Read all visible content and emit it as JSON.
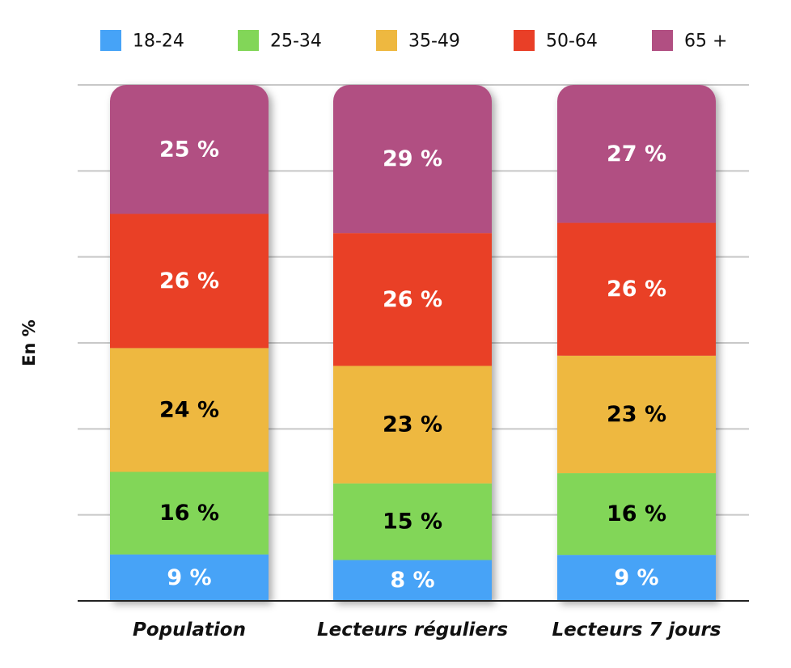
{
  "chart_data": {
    "type": "bar",
    "stacked": true,
    "normalized_percent": true,
    "ylabel": "En %",
    "ylim": [
      0,
      100
    ],
    "grid": true,
    "legend_position": "top",
    "categories": [
      "Population",
      "Lecteurs réguliers",
      "Lecteurs 7 jours"
    ],
    "series": [
      {
        "name": "18-24",
        "color": "#46a3f7",
        "label_color": "#ffffff",
        "values": [
          9,
          8,
          9
        ],
        "labels": [
          "9 %",
          "8 %",
          "9 %"
        ]
      },
      {
        "name": "25-34",
        "color": "#82d658",
        "label_color": "#000000",
        "values": [
          16,
          15,
          16
        ],
        "labels": [
          "16 %",
          "15 %",
          "16 %"
        ]
      },
      {
        "name": "35-49",
        "color": "#eeb840",
        "label_color": "#000000",
        "values": [
          24,
          23,
          23
        ],
        "labels": [
          "24 %",
          "23 %",
          "23 %"
        ]
      },
      {
        "name": "50-64",
        "color": "#e93f27",
        "label_color": "#ffffff",
        "values": [
          26,
          26,
          26
        ],
        "labels": [
          "26 %",
          "26 %",
          "26 %"
        ]
      },
      {
        "name": "65 +",
        "color": "#b14f82",
        "label_color": "#ffffff",
        "values": [
          25,
          29,
          27
        ],
        "labels": [
          "25 %",
          "29 %",
          "27 %"
        ]
      }
    ]
  }
}
